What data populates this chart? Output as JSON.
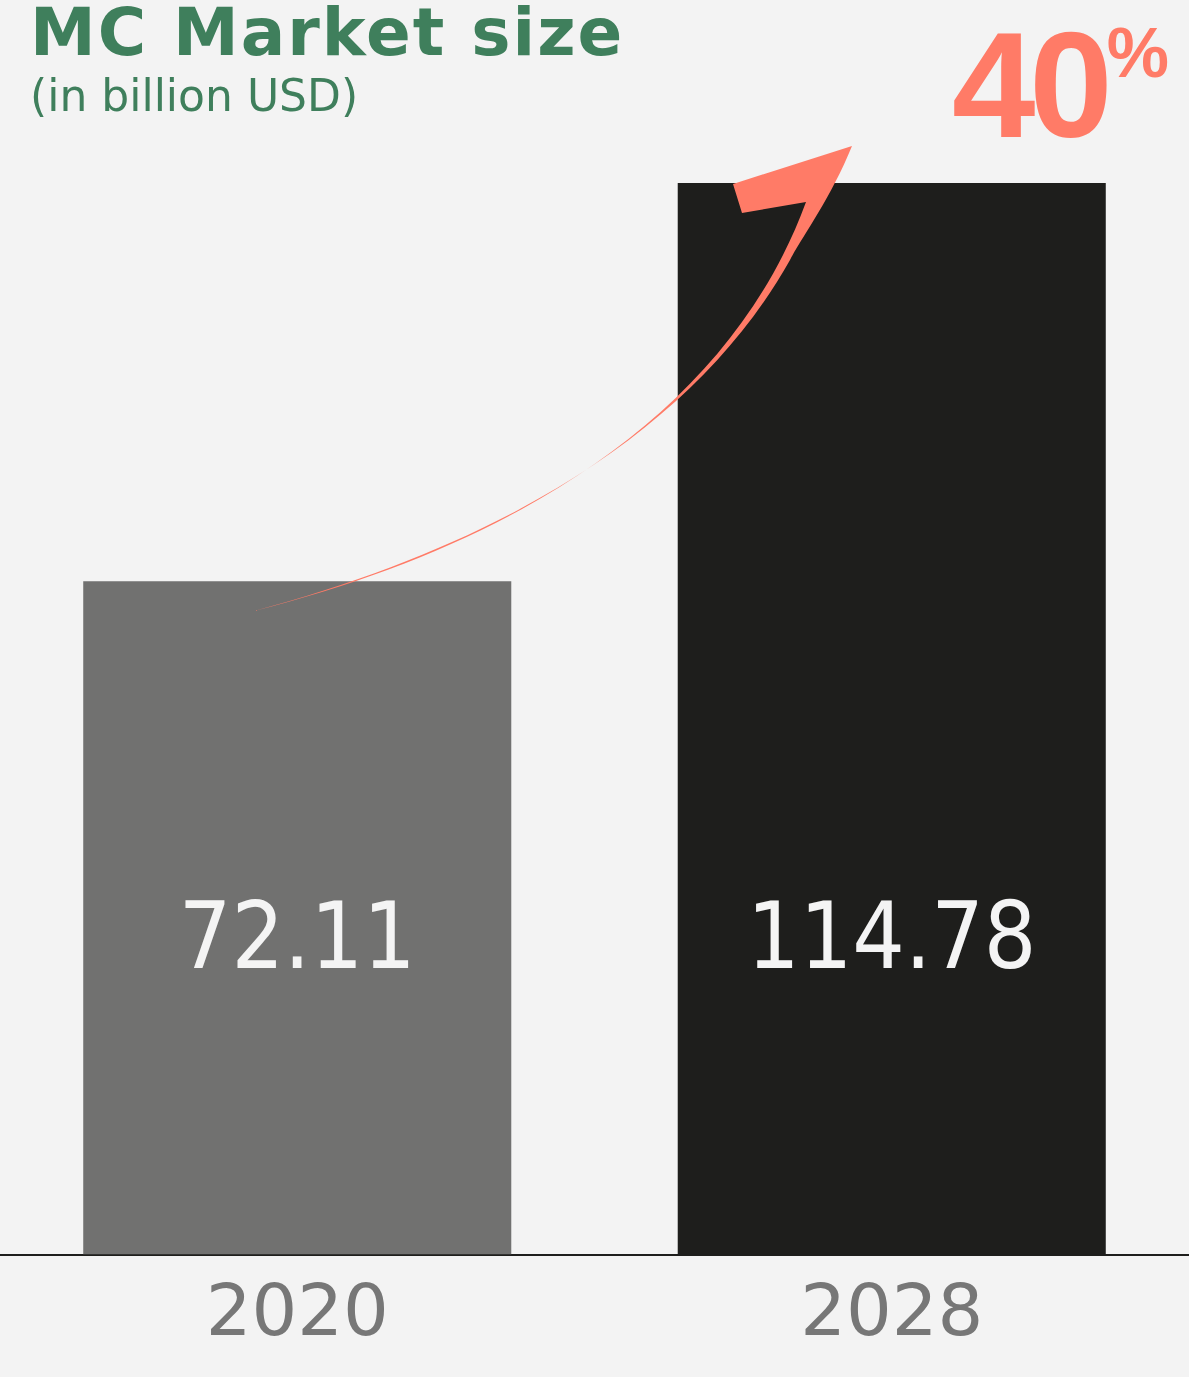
{
  "chart_data": {
    "type": "bar",
    "title": "MC Market size",
    "subtitle": "(in billion USD)",
    "categories": [
      "2020",
      "2028"
    ],
    "values": [
      72.11,
      114.78
    ],
    "colors": [
      "#717170",
      "#1e1e1c"
    ],
    "data_labels": true,
    "tick_labels": "x",
    "annotations": [
      "40$^{%}$"
    ]
  }
}
